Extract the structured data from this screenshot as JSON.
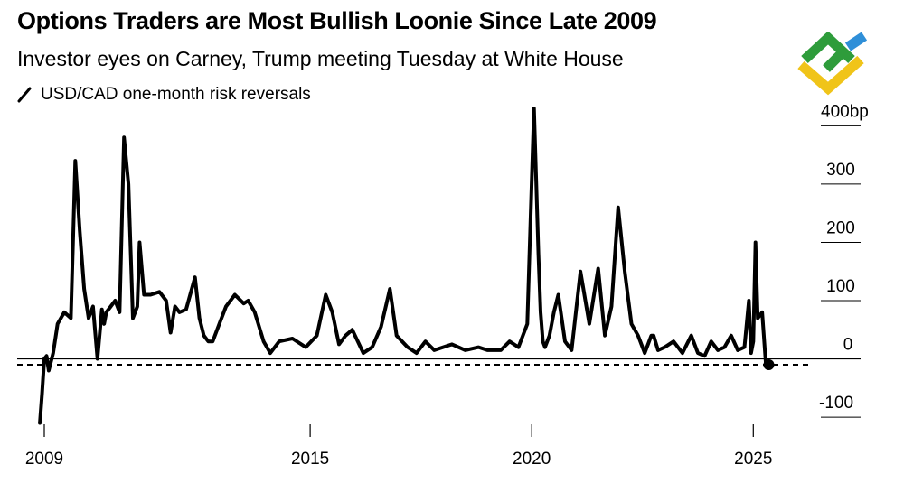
{
  "header": {
    "title": "Options Traders are Most Bullish Loonie Since Late 2009",
    "subtitle": "Investor eyes on Carney, Trump meeting Tuesday at White House",
    "legend_label": "USD/CAD one-month risk reversals"
  },
  "logo": {
    "name": "brand-logo",
    "colors": [
      "#2e9c3b",
      "#f0c419",
      "#2f8fd8"
    ]
  },
  "colors": {
    "series": "#000000",
    "grid": "#000000",
    "background": "#ffffff"
  },
  "chart_data": {
    "type": "line",
    "title": "Options Traders are Most Bullish Loonie Since Late 2009",
    "subtitle": "Investor eyes on Carney, Trump meeting Tuesday at White House",
    "xlabel": "",
    "ylabel": "bp",
    "xlim": [
      2009,
      2026
    ],
    "ylim": [
      -120,
      430
    ],
    "x_ticks": [
      {
        "value": 2009,
        "label": "2009"
      },
      {
        "value": 2015,
        "label": "2015"
      },
      {
        "value": 2020,
        "label": "2020"
      },
      {
        "value": 2025,
        "label": "2025"
      }
    ],
    "y_ticks": [
      {
        "value": 400,
        "label": "400bp"
      },
      {
        "value": 300,
        "label": "300"
      },
      {
        "value": 200,
        "label": "200"
      },
      {
        "value": 100,
        "label": "100"
      },
      {
        "value": 0,
        "label": "0"
      },
      {
        "value": -100,
        "label": "-100"
      }
    ],
    "reference_line": {
      "value": -10,
      "style": "dashed"
    },
    "last_point": {
      "x": 2025.35,
      "y": -10
    },
    "series": [
      {
        "name": "USD/CAD one-month risk reversals",
        "x": [
          2008.9,
          2008.95,
          2009.0,
          2009.05,
          2009.1,
          2009.2,
          2009.3,
          2009.45,
          2009.6,
          2009.7,
          2009.8,
          2009.9,
          2010.0,
          2010.1,
          2010.2,
          2010.3,
          2010.35,
          2010.4,
          2010.5,
          2010.6,
          2010.7,
          2010.8,
          2010.9,
          2011.0,
          2011.1,
          2011.15,
          2011.25,
          2011.4,
          2011.6,
          2011.75,
          2011.85,
          2011.95,
          2012.05,
          2012.2,
          2012.4,
          2012.5,
          2012.6,
          2012.7,
          2012.8,
          2012.95,
          2013.1,
          2013.3,
          2013.5,
          2013.6,
          2013.75,
          2013.95,
          2014.1,
          2014.3,
          2014.6,
          2014.9,
          2015.15,
          2015.35,
          2015.5,
          2015.65,
          2015.8,
          2015.95,
          2016.2,
          2016.4,
          2016.6,
          2016.8,
          2016.95,
          2017.2,
          2017.4,
          2017.6,
          2017.8,
          2018.0,
          2018.2,
          2018.5,
          2018.8,
          2019.0,
          2019.3,
          2019.5,
          2019.7,
          2019.9,
          2020.05,
          2020.15,
          2020.2,
          2020.25,
          2020.3,
          2020.4,
          2020.5,
          2020.6,
          2020.75,
          2020.9,
          2021.1,
          2021.3,
          2021.5,
          2021.65,
          2021.8,
          2021.95,
          2022.1,
          2022.25,
          2022.4,
          2022.55,
          2022.7,
          2022.75,
          2022.85,
          2023.0,
          2023.2,
          2023.4,
          2023.6,
          2023.75,
          2023.9,
          2024.05,
          2024.2,
          2024.35,
          2024.5,
          2024.65,
          2024.8,
          2024.9,
          2024.95,
          2025.0,
          2025.05,
          2025.1,
          2025.2,
          2025.28,
          2025.35
        ],
        "values": [
          -110,
          -60,
          0,
          5,
          -20,
          10,
          60,
          80,
          70,
          340,
          220,
          120,
          70,
          90,
          0,
          85,
          60,
          80,
          90,
          100,
          80,
          380,
          300,
          70,
          90,
          200,
          110,
          110,
          115,
          100,
          45,
          90,
          80,
          85,
          140,
          70,
          40,
          30,
          30,
          60,
          90,
          110,
          95,
          100,
          80,
          30,
          10,
          30,
          35,
          20,
          40,
          110,
          80,
          25,
          40,
          50,
          10,
          20,
          55,
          120,
          40,
          20,
          10,
          30,
          15,
          20,
          25,
          15,
          20,
          15,
          15,
          30,
          20,
          60,
          430,
          180,
          80,
          30,
          20,
          40,
          80,
          110,
          30,
          15,
          150,
          60,
          155,
          40,
          90,
          260,
          150,
          60,
          40,
          10,
          40,
          40,
          15,
          20,
          30,
          10,
          40,
          10,
          5,
          30,
          15,
          20,
          40,
          15,
          20,
          100,
          10,
          30,
          200,
          70,
          80,
          -5,
          -10
        ]
      }
    ]
  }
}
